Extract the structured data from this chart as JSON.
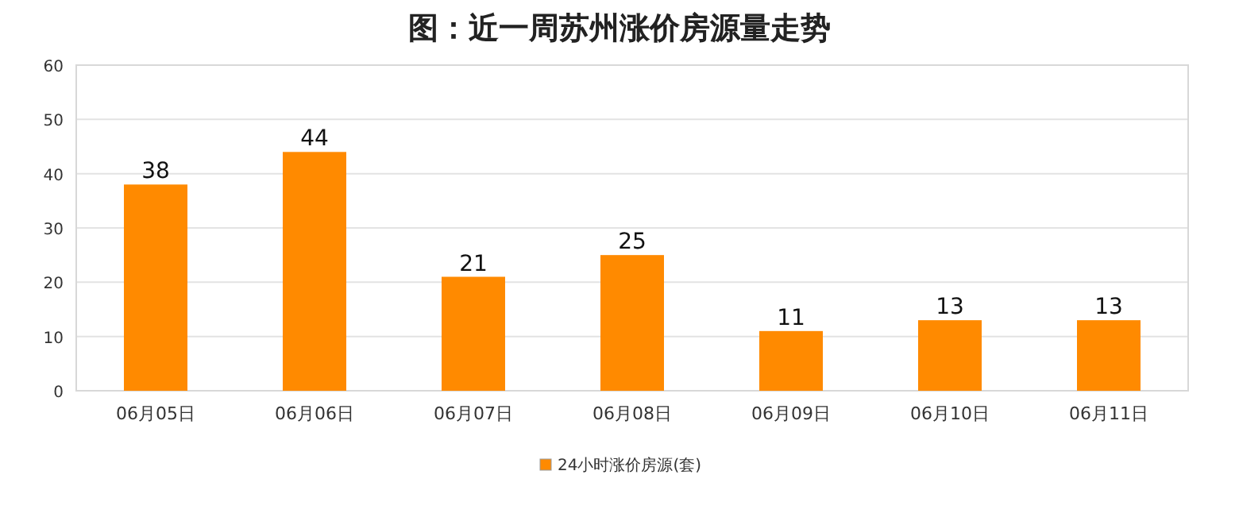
{
  "chart_data": {
    "type": "bar",
    "title": "图：近一周苏州涨价房源量走势",
    "categories": [
      "06月05日",
      "06月06日",
      "06月07日",
      "06月08日",
      "06月09日",
      "06月10日",
      "06月11日"
    ],
    "series": [
      {
        "name": "24小时涨价房源(套)",
        "color": "#ff8a00",
        "values": [
          38,
          44,
          21,
          25,
          11,
          13,
          13
        ]
      }
    ],
    "ylim": [
      0,
      60
    ],
    "yticks": [
      0,
      10,
      20,
      30,
      40,
      50,
      60
    ],
    "grid": "y",
    "legend": "bottom",
    "data_labels": true
  }
}
